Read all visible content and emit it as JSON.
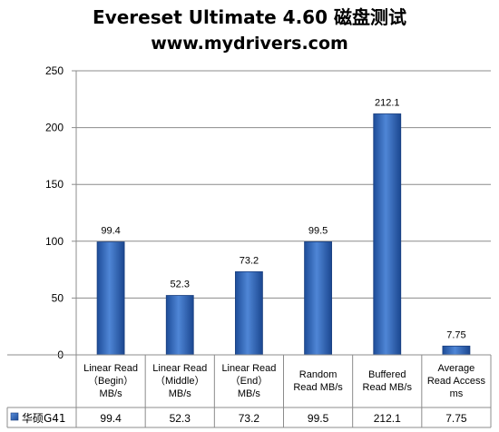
{
  "header": {
    "title": "Evereset Ultimate 4.60 磁盘测试",
    "subtitle": "www.mydrivers.com"
  },
  "chart_data": {
    "type": "bar",
    "categories": [
      [
        "Linear Read",
        "（Begin）",
        "MB/s"
      ],
      [
        "Linear Read",
        "（Middle）",
        "MB/s"
      ],
      [
        "Linear Read",
        "（End）",
        "MB/s"
      ],
      [
        "Random",
        "Read MB/s"
      ],
      [
        "Buffered",
        "Read MB/s"
      ],
      [
        "Average",
        "Read Access",
        "ms"
      ]
    ],
    "series": [
      {
        "name": "华硕G41",
        "values": [
          99.4,
          52.3,
          73.2,
          99.5,
          212.1,
          7.75
        ],
        "color": "#2e62b5"
      }
    ],
    "data_labels": [
      "99.4",
      "52.3",
      "73.2",
      "99.5",
      "212.1",
      "7.75"
    ],
    "ylim": [
      0,
      250
    ],
    "yticks": [
      0,
      50,
      100,
      150,
      200,
      250
    ],
    "grid": true,
    "legend": "data-table",
    "show_data_table": true
  }
}
